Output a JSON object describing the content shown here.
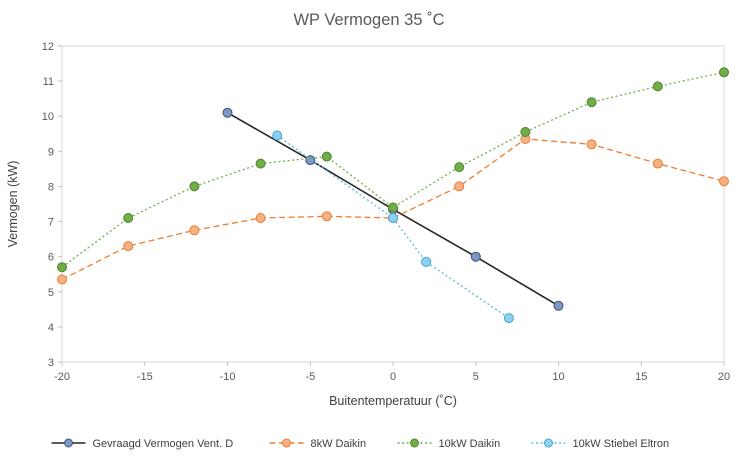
{
  "chart_data": {
    "type": "line",
    "title": "WP Vermogen 35 ˚C",
    "xlabel": "Buitentemperatuur (˚C)",
    "ylabel": "Vermogen (kW)",
    "xlim": [
      -20,
      20
    ],
    "ylim": [
      3,
      12
    ],
    "xticks": [
      -20,
      -15,
      -10,
      -5,
      0,
      5,
      10,
      15,
      20
    ],
    "yticks": [
      3,
      4,
      5,
      6,
      7,
      8,
      9,
      10,
      11,
      12
    ],
    "grid": false,
    "legend_position": "bottom",
    "colors": {
      "title": "#595959",
      "axis_text": "#404040",
      "tick_text": "#595959",
      "plot_border": "#d9d9d9",
      "tick_mark": "#bfbfbf"
    },
    "series": [
      {
        "name": "Gevraagd Vermogen Vent. D",
        "line_color": "#262626",
        "line_style": "solid",
        "marker_fill": "#7b96c9",
        "marker_stroke": "#44546a",
        "points": [
          [
            -10,
            10.1
          ],
          [
            -5,
            8.75
          ],
          [
            0,
            7.35
          ],
          [
            5,
            6.0
          ],
          [
            10,
            4.6
          ]
        ]
      },
      {
        "name": "8kW Daikin",
        "line_color": "#ed7d31",
        "line_style": "dashed",
        "marker_fill": "#f4b183",
        "marker_stroke": "#ed7d31",
        "points": [
          [
            -20,
            5.35
          ],
          [
            -16,
            6.3
          ],
          [
            -12,
            6.75
          ],
          [
            -8,
            7.1
          ],
          [
            -4,
            7.15
          ],
          [
            0,
            7.1
          ],
          [
            4,
            8.0
          ],
          [
            8,
            9.35
          ],
          [
            12,
            9.2
          ],
          [
            16,
            8.65
          ],
          [
            20,
            8.15
          ]
        ]
      },
      {
        "name": "10kW Daikin",
        "line_color": "#70ad47",
        "line_style": "dotted",
        "marker_fill": "#70ad47",
        "marker_stroke": "#548235",
        "points": [
          [
            -20,
            5.7
          ],
          [
            -16,
            7.1
          ],
          [
            -12,
            8.0
          ],
          [
            -8,
            8.65
          ],
          [
            -4,
            8.85
          ],
          [
            0,
            7.4
          ],
          [
            4,
            8.55
          ],
          [
            8,
            9.55
          ],
          [
            12,
            10.4
          ],
          [
            16,
            10.85
          ],
          [
            20,
            11.25
          ]
        ]
      },
      {
        "name": "10kW Stiebel Eltron",
        "line_color": "#56b9e4",
        "line_style": "dotted",
        "marker_fill": "#8ed1ef",
        "marker_stroke": "#3ea6d4",
        "points": [
          [
            -7,
            9.45
          ],
          [
            0,
            7.1
          ],
          [
            2,
            5.85
          ],
          [
            7,
            4.25
          ]
        ]
      }
    ]
  }
}
